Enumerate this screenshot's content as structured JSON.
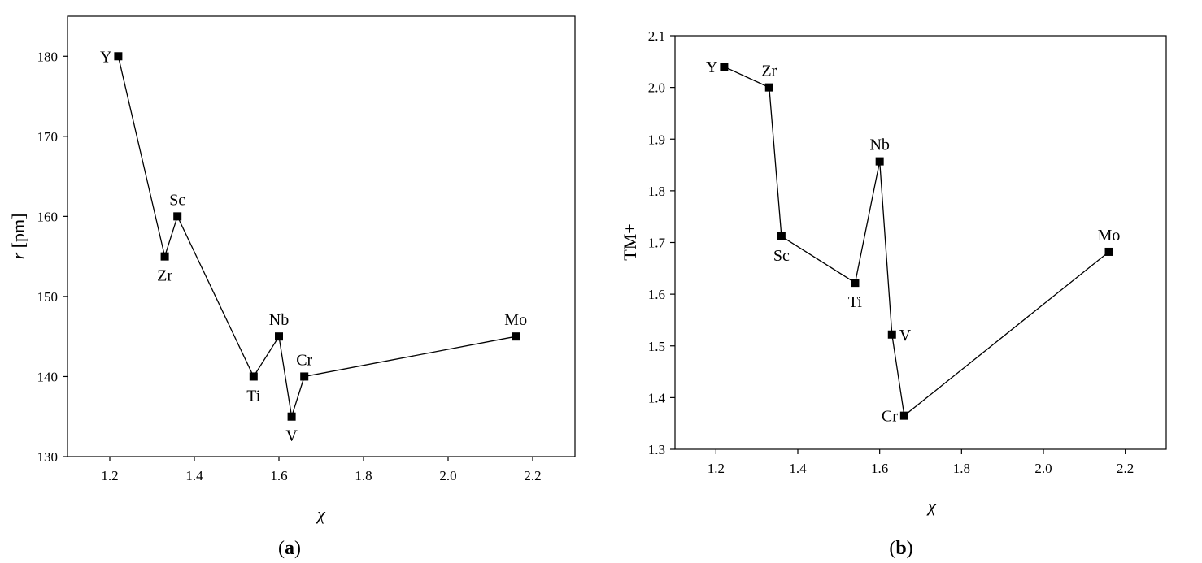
{
  "chart_data": [
    {
      "type": "line",
      "panel_label": "a",
      "xlabel": "χ",
      "ylabel_italic": "r",
      "ylabel_rest": " [pm]",
      "xlim": [
        1.1,
        2.3
      ],
      "ylim": [
        130,
        185
      ],
      "xticks": [
        1.2,
        1.4,
        1.6,
        1.8,
        2.0,
        2.2
      ],
      "yticks": [
        130,
        140,
        150,
        160,
        170,
        180
      ],
      "x_tick_decimals": 1,
      "y_tick_decimals": 0,
      "series": [
        {
          "x": [
            1.22,
            1.33,
            1.36,
            1.54,
            1.6,
            1.63,
            1.66,
            2.16
          ],
          "y": [
            180,
            155,
            160,
            140,
            145,
            135,
            140,
            145
          ],
          "labels": [
            "Y",
            "Zr",
            "Sc",
            "Ti",
            "Nb",
            "V",
            "Cr",
            "Mo"
          ],
          "label_positions": [
            "left",
            "below",
            "above",
            "below",
            "above",
            "below",
            "above",
            "above"
          ]
        }
      ]
    },
    {
      "type": "line",
      "panel_label": "b",
      "xlabel": "χ",
      "ylabel": "TM+",
      "xlim": [
        1.1,
        2.3
      ],
      "ylim": [
        1.3,
        2.1
      ],
      "xticks": [
        1.2,
        1.4,
        1.6,
        1.8,
        2.0,
        2.2
      ],
      "yticks": [
        1.3,
        1.4,
        1.5,
        1.6,
        1.7,
        1.8,
        1.9,
        2.0,
        2.1
      ],
      "x_tick_decimals": 1,
      "y_tick_decimals": 1,
      "series": [
        {
          "x": [
            1.22,
            1.33,
            1.36,
            1.54,
            1.6,
            1.63,
            1.66,
            2.16
          ],
          "y": [
            2.04,
            2.0,
            1.712,
            1.622,
            1.857,
            1.522,
            1.365,
            1.682
          ],
          "labels": [
            "Y",
            "Zr",
            "Sc",
            "Ti",
            "Nb",
            "V",
            "Cr",
            "Mo"
          ],
          "label_positions": [
            "left",
            "above",
            "below",
            "below",
            "above",
            "right",
            "left",
            "above"
          ]
        }
      ]
    }
  ]
}
